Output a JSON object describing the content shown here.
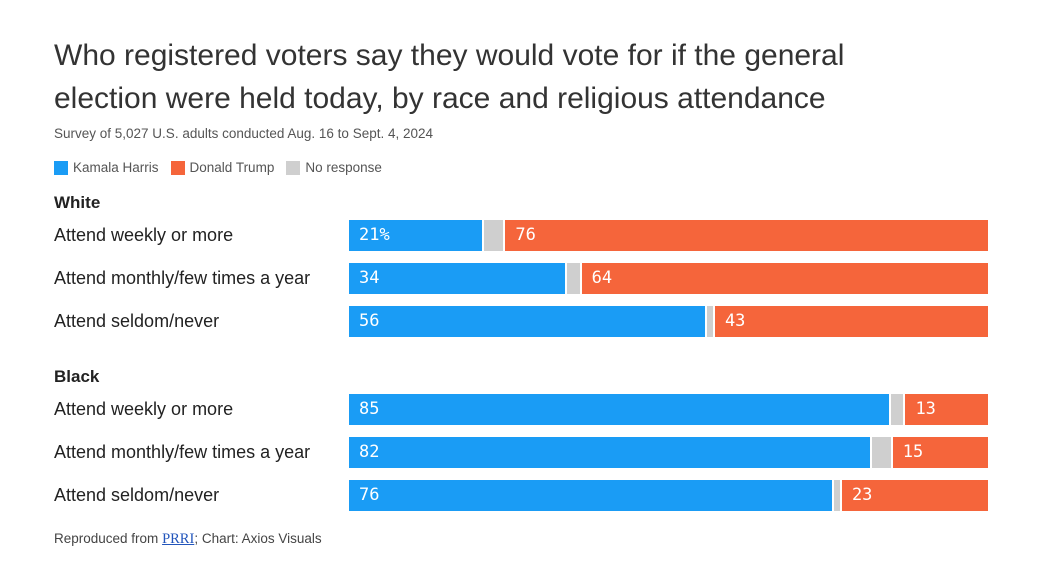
{
  "title": "Who registered voters say they would vote for if the general election were held today, by race and religious attendance",
  "subtitle": "Survey of 5,027 U.S. adults conducted Aug. 16 to Sept. 4, 2024",
  "legend": [
    {
      "name": "Kamala Harris",
      "color": "#1a9cf5"
    },
    {
      "name": "Donald Trump",
      "color": "#f5653b"
    },
    {
      "name": "No response",
      "color": "#cfcfcf"
    }
  ],
  "source": {
    "prefix": "Reproduced from ",
    "link_text": "PRRI",
    "suffix": "; Chart: Axios Visuals"
  },
  "chart_data": {
    "type": "bar",
    "orientation": "horizontal",
    "stacked": true,
    "groups": [
      {
        "name": "White",
        "rows": [
          {
            "label": "Attend weekly or more",
            "harris": 21,
            "no_response": 3,
            "trump": 76,
            "harris_label": "21%",
            "trump_label": "76"
          },
          {
            "label": "Attend monthly/few times a year",
            "harris": 34,
            "no_response": 2,
            "trump": 64,
            "harris_label": "34",
            "trump_label": "64"
          },
          {
            "label": "Attend seldom/never",
            "harris": 56,
            "no_response": 1,
            "trump": 43,
            "harris_label": "56",
            "trump_label": "43"
          }
        ]
      },
      {
        "name": "Black",
        "rows": [
          {
            "label": "Attend weekly or more",
            "harris": 85,
            "no_response": 2,
            "trump": 13,
            "harris_label": "85",
            "trump_label": "13"
          },
          {
            "label": "Attend monthly/few times a year",
            "harris": 82,
            "no_response": 3,
            "trump": 15,
            "harris_label": "82",
            "trump_label": "15"
          },
          {
            "label": "Attend seldom/never",
            "harris": 76,
            "no_response": 1,
            "trump": 23,
            "harris_label": "76",
            "trump_label": "23"
          }
        ]
      }
    ],
    "xlim": [
      0,
      100
    ]
  }
}
